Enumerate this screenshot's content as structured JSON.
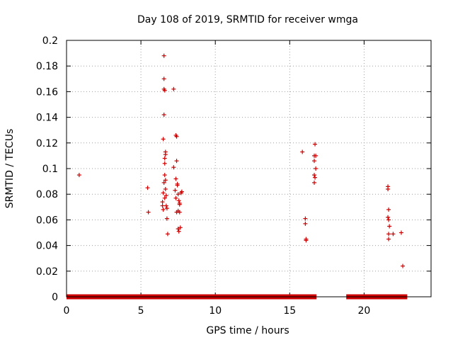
{
  "chart_data": {
    "type": "scatter",
    "title": "Day 108 of 2019, SRMTID for receiver wmga",
    "xlabel": "GPS time / hours",
    "ylabel": "SRMTID / TECUs",
    "xlim": [
      0,
      24.5
    ],
    "ylim": [
      0,
      0.2
    ],
    "xticks": [
      "0",
      "5",
      "10",
      "15",
      "20"
    ],
    "yticks": [
      "0",
      "0.02",
      "0.04",
      "0.06",
      "0.08",
      "0.1",
      "0.12",
      "0.14",
      "0.16",
      "0.18",
      "0.2"
    ],
    "grid": true,
    "series": [
      {
        "name": "SRMTID",
        "color": "#cc0000",
        "marker": "plus",
        "points": [
          [
            0.85,
            0.095
          ],
          [
            5.45,
            0.085
          ],
          [
            5.5,
            0.066
          ],
          [
            6.45,
            0.074
          ],
          [
            6.45,
            0.071
          ],
          [
            6.5,
            0.068
          ],
          [
            6.5,
            0.081
          ],
          [
            6.55,
            0.089
          ],
          [
            6.55,
            0.188
          ],
          [
            6.55,
            0.17
          ],
          [
            6.55,
            0.162
          ],
          [
            6.6,
            0.161
          ],
          [
            6.55,
            0.142
          ],
          [
            6.5,
            0.123
          ],
          [
            6.6,
            0.108
          ],
          [
            6.6,
            0.104
          ],
          [
            6.65,
            0.113
          ],
          [
            6.65,
            0.111
          ],
          [
            6.6,
            0.095
          ],
          [
            6.65,
            0.091
          ],
          [
            6.65,
            0.084
          ],
          [
            6.6,
            0.077
          ],
          [
            6.7,
            0.079
          ],
          [
            6.7,
            0.071
          ],
          [
            6.75,
            0.069
          ],
          [
            6.75,
            0.061
          ],
          [
            6.8,
            0.049
          ],
          [
            7.2,
            0.162
          ],
          [
            7.2,
            0.101
          ],
          [
            7.35,
            0.126
          ],
          [
            7.4,
            0.125
          ],
          [
            7.4,
            0.106
          ],
          [
            7.35,
            0.092
          ],
          [
            7.45,
            0.088
          ],
          [
            7.45,
            0.087
          ],
          [
            7.3,
            0.083
          ],
          [
            7.35,
            0.077
          ],
          [
            7.5,
            0.08
          ],
          [
            7.4,
            0.066
          ],
          [
            7.5,
            0.067
          ],
          [
            7.55,
            0.075
          ],
          [
            7.6,
            0.073
          ],
          [
            7.6,
            0.072
          ],
          [
            7.6,
            0.066
          ],
          [
            7.5,
            0.053
          ],
          [
            7.55,
            0.051
          ],
          [
            7.65,
            0.054
          ],
          [
            7.7,
            0.081
          ],
          [
            7.75,
            0.082
          ],
          [
            15.85,
            0.113
          ],
          [
            16.05,
            0.061
          ],
          [
            16.05,
            0.057
          ],
          [
            16.1,
            0.045
          ],
          [
            16.1,
            0.044
          ],
          [
            16.7,
            0.119
          ],
          [
            16.65,
            0.11
          ],
          [
            16.75,
            0.11
          ],
          [
            16.65,
            0.106
          ],
          [
            16.75,
            0.1
          ],
          [
            16.65,
            0.095
          ],
          [
            16.7,
            0.093
          ],
          [
            16.65,
            0.089
          ],
          [
            21.6,
            0.086
          ],
          [
            21.6,
            0.084
          ],
          [
            21.65,
            0.068
          ],
          [
            21.6,
            0.062
          ],
          [
            21.65,
            0.06
          ],
          [
            21.7,
            0.055
          ],
          [
            21.65,
            0.049
          ],
          [
            21.65,
            0.045
          ],
          [
            21.95,
            0.049
          ],
          [
            22.5,
            0.05
          ],
          [
            22.6,
            0.024
          ]
        ],
        "zero_segments": [
          [
            0,
            16.8
          ],
          [
            18.8,
            22.9
          ]
        ]
      }
    ]
  }
}
